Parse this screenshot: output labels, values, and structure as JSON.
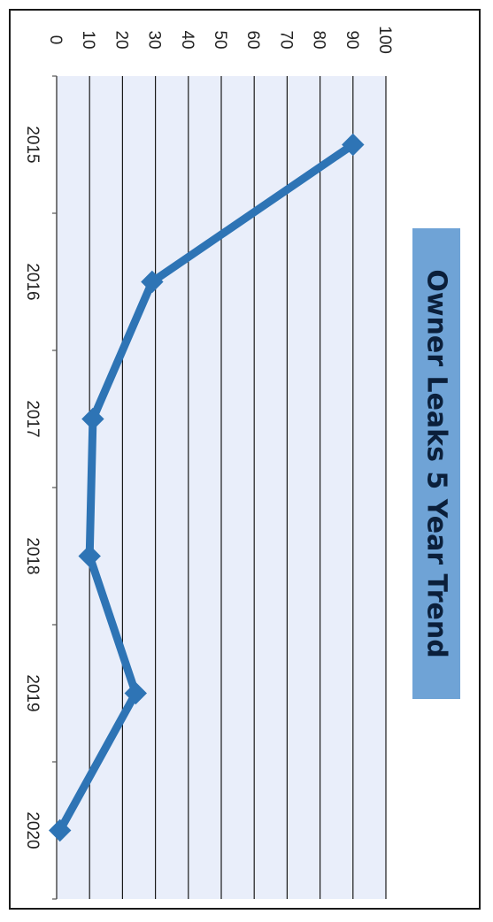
{
  "chart_data": {
    "type": "line",
    "title": "Owner Leaks 5 Year Trend",
    "xlabel": "",
    "ylabel": "",
    "categories": [
      "2015",
      "2016",
      "2017",
      "2018",
      "2019",
      "2020"
    ],
    "series": [
      {
        "values": [
          90,
          29,
          11,
          10,
          24,
          1
        ]
      }
    ],
    "ylim": [
      0,
      100
    ],
    "yticks": [
      "0",
      "10",
      "20",
      "30",
      "40",
      "50",
      "60",
      "70",
      "80",
      "90",
      "100"
    ],
    "grid": true,
    "legend": "none",
    "orientation": "rotated 90 degrees clockwise",
    "colors": {
      "line": "#2e74b5",
      "plot_background": "#e9eefa",
      "title_background": "#6fa3d6",
      "gridline": "#1a1a1a"
    }
  }
}
